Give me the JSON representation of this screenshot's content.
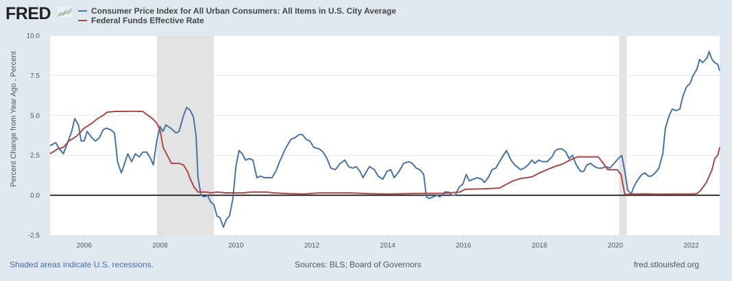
{
  "header": {
    "logo_text": "FRED",
    "logo_icon": "line-chart-icon"
  },
  "footer": {
    "recession_note": "Shaded areas indicate U.S. recessions.",
    "sources": "Sources: BLS; Board of Governors",
    "site": "fred.stlouisfed.org"
  },
  "chart_data": {
    "type": "line",
    "title": "",
    "xlabel": "",
    "ylabel": "Percent Change from Year Ago , Percent",
    "xlim": [
      2005.1,
      2022.75
    ],
    "ylim": [
      -2.5,
      10.0
    ],
    "yticks": [
      -2.5,
      0.0,
      2.5,
      5.0,
      7.5,
      10.0
    ],
    "ytick_labels": [
      "-2.5",
      "0.0",
      "2.5",
      "5.0",
      "7.5",
      "10.0"
    ],
    "xticks": [
      2006,
      2008,
      2010,
      2012,
      2014,
      2016,
      2018,
      2020,
      2022
    ],
    "xtick_labels": [
      "2006",
      "2008",
      "2010",
      "2012",
      "2014",
      "2016",
      "2018",
      "2020",
      "2022"
    ],
    "grid": true,
    "zero_line": true,
    "legend_position": "top-left",
    "recessions": [
      [
        2007.92,
        2009.42
      ],
      [
        2020.1,
        2020.3
      ]
    ],
    "series": [
      {
        "name": "Consumer Price Index for All Urban Consumers: All Items in U.S. City Average",
        "color": "#4572a7",
        "points": [
          [
            2005.1,
            3.1
          ],
          [
            2005.25,
            3.3
          ],
          [
            2005.35,
            2.9
          ],
          [
            2005.45,
            2.6
          ],
          [
            2005.55,
            3.2
          ],
          [
            2005.67,
            4.0
          ],
          [
            2005.75,
            4.8
          ],
          [
            2005.85,
            4.4
          ],
          [
            2005.92,
            3.4
          ],
          [
            2006.0,
            3.4
          ],
          [
            2006.08,
            4.0
          ],
          [
            2006.2,
            3.6
          ],
          [
            2006.3,
            3.4
          ],
          [
            2006.4,
            3.6
          ],
          [
            2006.5,
            4.1
          ],
          [
            2006.58,
            4.2
          ],
          [
            2006.7,
            4.1
          ],
          [
            2006.8,
            3.9
          ],
          [
            2006.88,
            2.1
          ],
          [
            2006.98,
            1.4
          ],
          [
            2007.08,
            2.1
          ],
          [
            2007.15,
            2.6
          ],
          [
            2007.25,
            2.1
          ],
          [
            2007.35,
            2.6
          ],
          [
            2007.45,
            2.4
          ],
          [
            2007.55,
            2.7
          ],
          [
            2007.65,
            2.7
          ],
          [
            2007.75,
            2.3
          ],
          [
            2007.82,
            1.9
          ],
          [
            2007.92,
            3.5
          ],
          [
            2008.0,
            4.3
          ],
          [
            2008.08,
            4.0
          ],
          [
            2008.15,
            4.4
          ],
          [
            2008.28,
            4.2
          ],
          [
            2008.42,
            3.9
          ],
          [
            2008.5,
            4.0
          ],
          [
            2008.62,
            5.0
          ],
          [
            2008.7,
            5.5
          ],
          [
            2008.8,
            5.3
          ],
          [
            2008.88,
            4.9
          ],
          [
            2008.95,
            3.7
          ],
          [
            2009.0,
            1.1
          ],
          [
            2009.08,
            0.0
          ],
          [
            2009.17,
            -0.1
          ],
          [
            2009.25,
            0.0
          ],
          [
            2009.33,
            -0.4
          ],
          [
            2009.42,
            -0.6
          ],
          [
            2009.5,
            -1.3
          ],
          [
            2009.58,
            -1.4
          ],
          [
            2009.67,
            -2.0
          ],
          [
            2009.75,
            -1.5
          ],
          [
            2009.83,
            -1.3
          ],
          [
            2009.92,
            -0.2
          ],
          [
            2010.0,
            1.8
          ],
          [
            2010.08,
            2.8
          ],
          [
            2010.17,
            2.6
          ],
          [
            2010.25,
            2.2
          ],
          [
            2010.35,
            2.3
          ],
          [
            2010.45,
            2.2
          ],
          [
            2010.55,
            1.1
          ],
          [
            2010.65,
            1.2
          ],
          [
            2010.75,
            1.1
          ],
          [
            2010.85,
            1.1
          ],
          [
            2010.95,
            1.1
          ],
          [
            2011.05,
            1.5
          ],
          [
            2011.15,
            2.1
          ],
          [
            2011.3,
            2.9
          ],
          [
            2011.45,
            3.5
          ],
          [
            2011.55,
            3.6
          ],
          [
            2011.67,
            3.8
          ],
          [
            2011.75,
            3.8
          ],
          [
            2011.85,
            3.5
          ],
          [
            2011.95,
            3.4
          ],
          [
            2012.05,
            3.0
          ],
          [
            2012.2,
            2.9
          ],
          [
            2012.3,
            2.7
          ],
          [
            2012.4,
            2.3
          ],
          [
            2012.5,
            1.7
          ],
          [
            2012.62,
            1.6
          ],
          [
            2012.75,
            2.0
          ],
          [
            2012.87,
            2.2
          ],
          [
            2012.97,
            1.8
          ],
          [
            2013.08,
            1.7
          ],
          [
            2013.17,
            1.8
          ],
          [
            2013.27,
            1.5
          ],
          [
            2013.35,
            1.1
          ],
          [
            2013.42,
            1.4
          ],
          [
            2013.52,
            1.8
          ],
          [
            2013.65,
            1.6
          ],
          [
            2013.75,
            1.2
          ],
          [
            2013.87,
            1.0
          ],
          [
            2013.98,
            1.5
          ],
          [
            2014.08,
            1.6
          ],
          [
            2014.17,
            1.1
          ],
          [
            2014.3,
            1.5
          ],
          [
            2014.42,
            2.0
          ],
          [
            2014.55,
            2.1
          ],
          [
            2014.65,
            2.0
          ],
          [
            2014.75,
            1.7
          ],
          [
            2014.85,
            1.6
          ],
          [
            2014.95,
            1.3
          ],
          [
            2015.02,
            -0.1
          ],
          [
            2015.1,
            -0.2
          ],
          [
            2015.2,
            -0.1
          ],
          [
            2015.3,
            0.0
          ],
          [
            2015.38,
            -0.1
          ],
          [
            2015.5,
            0.2
          ],
          [
            2015.6,
            0.2
          ],
          [
            2015.7,
            0.0
          ],
          [
            2015.78,
            0.0
          ],
          [
            2015.88,
            0.5
          ],
          [
            2015.98,
            0.7
          ],
          [
            2016.07,
            1.3
          ],
          [
            2016.15,
            0.9
          ],
          [
            2016.25,
            1.0
          ],
          [
            2016.37,
            1.1
          ],
          [
            2016.48,
            1.0
          ],
          [
            2016.55,
            0.8
          ],
          [
            2016.65,
            1.1
          ],
          [
            2016.75,
            1.6
          ],
          [
            2016.85,
            1.7
          ],
          [
            2016.95,
            2.1
          ],
          [
            2017.05,
            2.5
          ],
          [
            2017.13,
            2.8
          ],
          [
            2017.25,
            2.2
          ],
          [
            2017.35,
            1.9
          ],
          [
            2017.5,
            1.6
          ],
          [
            2017.6,
            1.7
          ],
          [
            2017.7,
            1.9
          ],
          [
            2017.8,
            2.2
          ],
          [
            2017.88,
            2.0
          ],
          [
            2017.98,
            2.2
          ],
          [
            2018.08,
            2.1
          ],
          [
            2018.2,
            2.1
          ],
          [
            2018.33,
            2.4
          ],
          [
            2018.42,
            2.8
          ],
          [
            2018.5,
            2.9
          ],
          [
            2018.6,
            2.9
          ],
          [
            2018.7,
            2.7
          ],
          [
            2018.78,
            2.3
          ],
          [
            2018.87,
            2.5
          ],
          [
            2018.97,
            1.9
          ],
          [
            2019.08,
            1.5
          ],
          [
            2019.17,
            1.5
          ],
          [
            2019.25,
            1.9
          ],
          [
            2019.35,
            2.0
          ],
          [
            2019.45,
            1.8
          ],
          [
            2019.55,
            1.7
          ],
          [
            2019.65,
            1.7
          ],
          [
            2019.75,
            1.8
          ],
          [
            2019.85,
            1.7
          ],
          [
            2019.97,
            2.0
          ],
          [
            2020.08,
            2.3
          ],
          [
            2020.17,
            2.5
          ],
          [
            2020.25,
            1.5
          ],
          [
            2020.33,
            0.3
          ],
          [
            2020.42,
            0.1
          ],
          [
            2020.5,
            0.6
          ],
          [
            2020.6,
            1.0
          ],
          [
            2020.7,
            1.3
          ],
          [
            2020.78,
            1.4
          ],
          [
            2020.87,
            1.2
          ],
          [
            2020.95,
            1.2
          ],
          [
            2021.05,
            1.4
          ],
          [
            2021.15,
            1.7
          ],
          [
            2021.25,
            2.6
          ],
          [
            2021.32,
            4.2
          ],
          [
            2021.42,
            5.0
          ],
          [
            2021.5,
            5.4
          ],
          [
            2021.6,
            5.3
          ],
          [
            2021.7,
            5.4
          ],
          [
            2021.78,
            6.2
          ],
          [
            2021.88,
            6.8
          ],
          [
            2021.97,
            7.0
          ],
          [
            2022.05,
            7.5
          ],
          [
            2022.15,
            7.9
          ],
          [
            2022.22,
            8.5
          ],
          [
            2022.3,
            8.3
          ],
          [
            2022.42,
            8.6
          ],
          [
            2022.47,
            9.0
          ],
          [
            2022.55,
            8.5
          ],
          [
            2022.62,
            8.3
          ],
          [
            2022.7,
            8.2
          ],
          [
            2022.75,
            7.8
          ]
        ]
      },
      {
        "name": "Federal Funds Effective Rate",
        "color": "#aa4643",
        "points": [
          [
            2005.1,
            2.6
          ],
          [
            2005.3,
            2.9
          ],
          [
            2005.45,
            3.0
          ],
          [
            2005.6,
            3.4
          ],
          [
            2005.8,
            3.7
          ],
          [
            2006.0,
            4.2
          ],
          [
            2006.2,
            4.5
          ],
          [
            2006.35,
            4.8
          ],
          [
            2006.5,
            5.0
          ],
          [
            2006.6,
            5.2
          ],
          [
            2006.8,
            5.25
          ],
          [
            2007.0,
            5.25
          ],
          [
            2007.2,
            5.26
          ],
          [
            2007.4,
            5.26
          ],
          [
            2007.55,
            5.24
          ],
          [
            2007.68,
            5.0
          ],
          [
            2007.8,
            4.8
          ],
          [
            2007.92,
            4.5
          ],
          [
            2008.0,
            4.1
          ],
          [
            2008.08,
            3.0
          ],
          [
            2008.17,
            2.6
          ],
          [
            2008.3,
            2.0
          ],
          [
            2008.5,
            2.0
          ],
          [
            2008.62,
            1.9
          ],
          [
            2008.72,
            1.5
          ],
          [
            2008.8,
            1.0
          ],
          [
            2008.9,
            0.5
          ],
          [
            2009.0,
            0.2
          ],
          [
            2009.2,
            0.2
          ],
          [
            2009.35,
            0.15
          ],
          [
            2009.5,
            0.2
          ],
          [
            2009.75,
            0.15
          ],
          [
            2010.0,
            0.15
          ],
          [
            2010.2,
            0.15
          ],
          [
            2010.4,
            0.2
          ],
          [
            2010.8,
            0.2
          ],
          [
            2011.0,
            0.15
          ],
          [
            2011.4,
            0.1
          ],
          [
            2011.8,
            0.08
          ],
          [
            2012.2,
            0.15
          ],
          [
            2012.6,
            0.15
          ],
          [
            2013.0,
            0.15
          ],
          [
            2013.5,
            0.1
          ],
          [
            2014.0,
            0.08
          ],
          [
            2014.5,
            0.1
          ],
          [
            2015.0,
            0.12
          ],
          [
            2015.5,
            0.13
          ],
          [
            2015.9,
            0.2
          ],
          [
            2016.05,
            0.38
          ],
          [
            2016.5,
            0.4
          ],
          [
            2016.95,
            0.45
          ],
          [
            2017.1,
            0.65
          ],
          [
            2017.3,
            0.9
          ],
          [
            2017.5,
            1.05
          ],
          [
            2017.8,
            1.15
          ],
          [
            2018.0,
            1.4
          ],
          [
            2018.2,
            1.6
          ],
          [
            2018.4,
            1.8
          ],
          [
            2018.6,
            1.95
          ],
          [
            2018.8,
            2.2
          ],
          [
            2019.0,
            2.4
          ],
          [
            2019.4,
            2.4
          ],
          [
            2019.55,
            2.4
          ],
          [
            2019.65,
            2.1
          ],
          [
            2019.8,
            1.6
          ],
          [
            2020.05,
            1.6
          ],
          [
            2020.15,
            1.3
          ],
          [
            2020.25,
            0.05
          ],
          [
            2020.5,
            0.08
          ],
          [
            2020.8,
            0.09
          ],
          [
            2021.2,
            0.07
          ],
          [
            2021.6,
            0.08
          ],
          [
            2022.0,
            0.08
          ],
          [
            2022.15,
            0.1
          ],
          [
            2022.25,
            0.3
          ],
          [
            2022.4,
            0.8
          ],
          [
            2022.55,
            1.6
          ],
          [
            2022.62,
            2.3
          ],
          [
            2022.7,
            2.5
          ],
          [
            2022.75,
            3.0
          ]
        ]
      }
    ]
  }
}
